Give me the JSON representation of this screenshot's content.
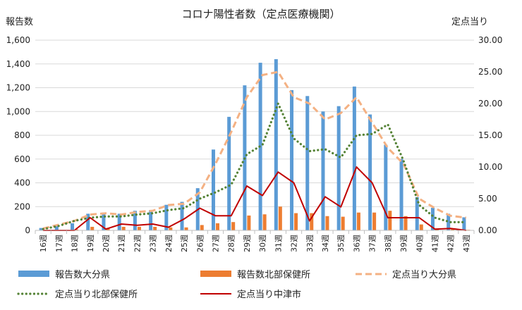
{
  "chart_data": {
    "type": "bar+line",
    "title": "コロナ陽性者数（定点医療機関）",
    "ylabel_left": "報告数",
    "ylabel_right": "定点当り",
    "ylim_left": [
      0,
      1600
    ],
    "ylim_right": [
      0,
      30
    ],
    "yticks_left": [
      "0",
      "200",
      "400",
      "600",
      "800",
      "1,000",
      "1,200",
      "1,400",
      "1,600"
    ],
    "yticks_right": [
      "0.00",
      "5.00",
      "10.00",
      "15.00",
      "20.00",
      "25.00",
      "30.00"
    ],
    "categories": [
      "16週",
      "17週",
      "18週",
      "19週",
      "20週",
      "21週",
      "22週",
      "23週",
      "24週",
      "25週",
      "26週",
      "27週",
      "28週",
      "29週",
      "30週",
      "31週",
      "32週",
      "33週",
      "34週",
      "35週",
      "36週",
      "37週",
      "38週",
      "39週",
      "40週",
      "41週",
      "42週",
      "43週"
    ],
    "series": [
      {
        "name": "報告数大分県",
        "kind": "bar",
        "axis": "left",
        "color": "#5b9bd5",
        "values": [
          20,
          35,
          60,
          140,
          150,
          140,
          165,
          170,
          215,
          240,
          355,
          680,
          955,
          1220,
          1410,
          1440,
          1180,
          1130,
          1000,
          1045,
          1210,
          975,
          720,
          600,
          280,
          190,
          140,
          110
        ]
      },
      {
        "name": "報告数北部保健所",
        "kind": "bar",
        "axis": "left",
        "color": "#ed7d31",
        "values": [
          3,
          5,
          8,
          30,
          20,
          30,
          30,
          30,
          25,
          25,
          45,
          60,
          70,
          125,
          135,
          200,
          145,
          145,
          120,
          115,
          150,
          150,
          165,
          120,
          50,
          15,
          10,
          5
        ]
      },
      {
        "name": "定点当り大分県",
        "kind": "line",
        "style": "dashed",
        "axis": "right",
        "color": "#f4b183",
        "values": [
          0.3,
          0.9,
          1.5,
          2.5,
          2.7,
          2.5,
          2.9,
          3.1,
          4.0,
          4.2,
          6.0,
          10.5,
          15.5,
          21.0,
          24.5,
          25.0,
          21.0,
          20.0,
          17.5,
          18.5,
          21.0,
          17.0,
          13.0,
          10.5,
          5.0,
          3.5,
          2.3,
          2.0
        ]
      },
      {
        "name": "定点当り北部保健所",
        "kind": "line",
        "style": "dotted",
        "axis": "right",
        "color": "#548235",
        "values": [
          0.2,
          0.7,
          1.5,
          2.0,
          2.2,
          2.2,
          2.5,
          2.7,
          3.2,
          3.5,
          5.0,
          6.0,
          7.2,
          12.0,
          13.5,
          20.0,
          14.5,
          12.5,
          12.8,
          11.5,
          15.0,
          15.2,
          16.7,
          11.0,
          4.0,
          2.0,
          1.3,
          1.3
        ]
      },
      {
        "name": "定点当り中津市",
        "kind": "line",
        "style": "solid",
        "axis": "right",
        "color": "#c00000",
        "values": [
          0.0,
          0.0,
          0.0,
          2.0,
          0.2,
          1.0,
          0.8,
          1.0,
          0.5,
          1.8,
          3.5,
          2.3,
          2.3,
          7.0,
          5.5,
          9.2,
          7.5,
          1.5,
          5.3,
          3.7,
          10.0,
          7.5,
          2.0,
          2.0,
          2.0,
          0.2,
          0.3,
          0.0
        ]
      }
    ]
  }
}
